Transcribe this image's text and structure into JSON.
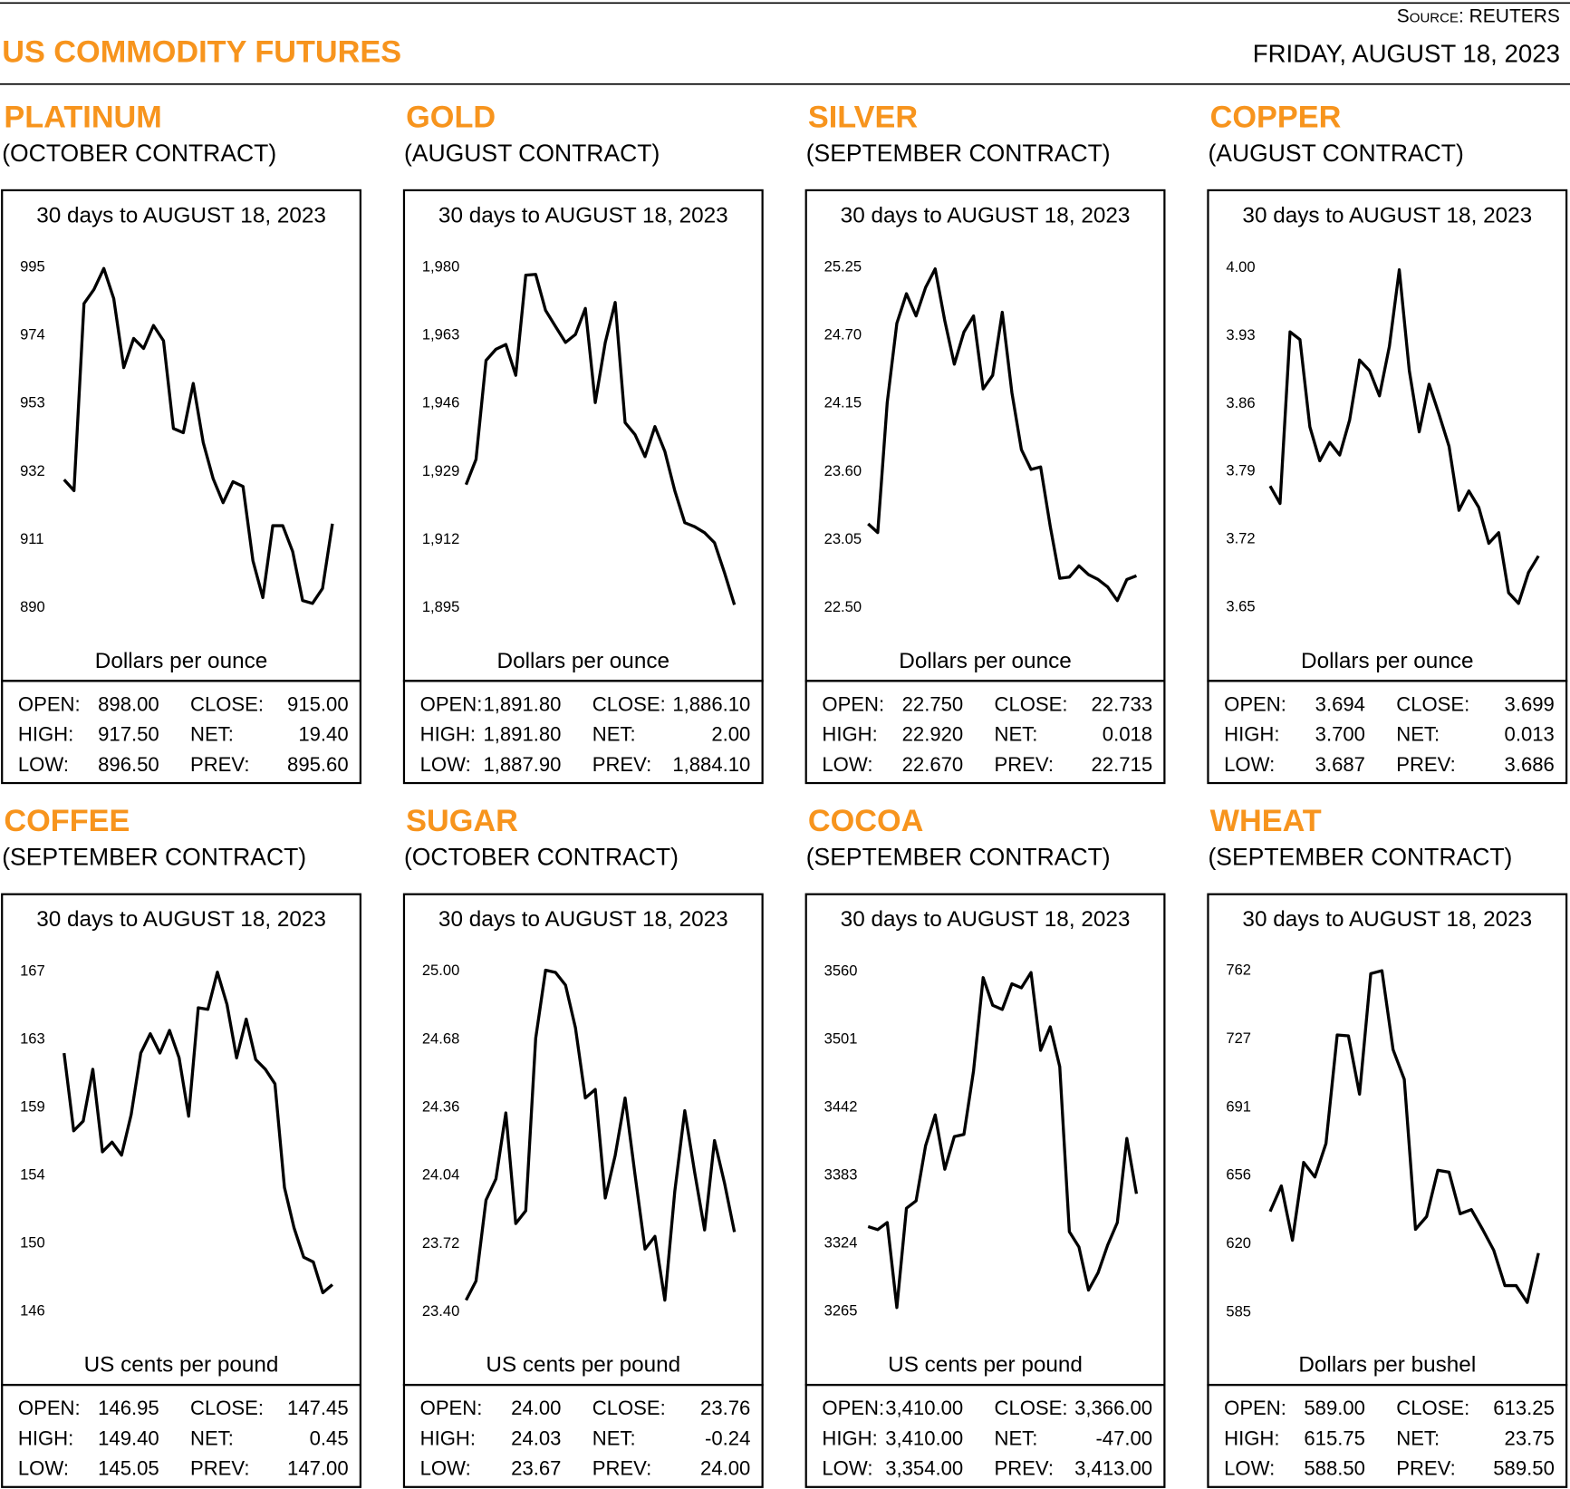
{
  "header": {
    "source": "Source: REUTERS",
    "title": "US COMMODITY FUTURES",
    "date": "FRIDAY, AUGUST 18, 2023"
  },
  "chart_data": [
    {
      "type": "line",
      "title": "PLATINUM",
      "subtitle": "(OCTOBER CONTRACT)",
      "caption": "30 days to AUGUST 18, 2023",
      "ylabel": "Dollars per ounce",
      "color": "#000000",
      "ylim": [
        885,
        1000
      ],
      "yticks": [
        995,
        974,
        953,
        932,
        911,
        890
      ],
      "values": [
        929.2,
        925.8,
        983.6,
        987.9,
        994.4,
        985.1,
        963.8,
        972.8,
        969.7,
        976.8,
        972.1,
        945,
        943.7,
        958.9,
        940.6,
        929.5,
        922.1,
        928.6,
        927.1,
        904.2,
        892.8,
        915,
        915,
        907,
        891.9,
        891,
        895.6,
        915.6
      ],
      "stats": [
        [
          "OPEN:",
          "898.00",
          "CLOSE:",
          "915.00"
        ],
        [
          "HIGH:",
          "917.50",
          "NET:",
          "19.40"
        ],
        [
          "LOW:",
          "896.50",
          "PREV:",
          "895.60"
        ]
      ]
    },
    {
      "type": "line",
      "title": "GOLD",
      "subtitle": "(AUGUST CONTRACT)",
      "caption": "30 days to AUGUST 18, 2023",
      "ylabel": "Dollars per ounce",
      "color": "#000000",
      "ylim": [
        1891,
        1984
      ],
      "yticks": [
        {
          "value": 1980,
          "label": "1,980"
        },
        {
          "value": 1963,
          "label": "1,963"
        },
        {
          "value": 1946,
          "label": "1,946"
        },
        {
          "value": 1929,
          "label": "1,929"
        },
        {
          "value": 1912,
          "label": "1,912"
        },
        {
          "value": 1895,
          "label": "1,895"
        }
      ],
      "values": [
        1925.5,
        1931.8,
        1956.5,
        1959.3,
        1960.5,
        1952.8,
        1977.8,
        1978,
        1969,
        1965,
        1961,
        1963,
        1969.5,
        1946,
        1961,
        1971,
        1941,
        1938,
        1932.5,
        1940,
        1933.8,
        1924,
        1916,
        1915,
        1913.5,
        1911,
        1903.5,
        1895.5
      ],
      "stats": [
        [
          "OPEN:",
          "1,891.80",
          "CLOSE:",
          "1,886.10"
        ],
        [
          "HIGH:",
          "1,891.80",
          "NET:",
          "2.00"
        ],
        [
          "LOW:",
          "1,887.90",
          "PREV:",
          "1,884.10"
        ]
      ]
    },
    {
      "type": "line",
      "title": "SILVER",
      "subtitle": "(SEPTEMBER CONTRACT)",
      "caption": "30 days to AUGUST 18, 2023",
      "ylabel": "Dollars per ounce",
      "color": "#000000",
      "ylim": [
        22.37,
        25.38
      ],
      "yticks": [
        25.25,
        {
          "value": 24.7,
          "label": "24.70"
        },
        24.15,
        {
          "value": 23.6,
          "label": "23.60"
        },
        23.05,
        {
          "value": 22.5,
          "label": "22.50"
        }
      ],
      "values": [
        23.17,
        23.1,
        24.15,
        24.79,
        25.03,
        24.85,
        25.08,
        25.23,
        24.81,
        24.46,
        24.72,
        24.85,
        24.26,
        24.37,
        24.88,
        24.23,
        23.77,
        23.61,
        23.63,
        23.15,
        22.73,
        22.74,
        22.83,
        22.76,
        22.72,
        22.66,
        22.55,
        22.72,
        22.75
      ],
      "stats": [
        [
          "OPEN:",
          "22.750",
          "CLOSE:",
          "22.733"
        ],
        [
          "HIGH:",
          "22.920",
          "NET:",
          "0.018"
        ],
        [
          "LOW:",
          "22.670",
          "PREV:",
          "22.715"
        ]
      ]
    },
    {
      "type": "line",
      "title": "COPPER",
      "subtitle": "(AUGUST CONTRACT)",
      "caption": "30 days to AUGUST 18, 2023",
      "ylabel": "Dollars per ounce",
      "color": "#000000",
      "ylim": [
        3.633,
        4.017
      ],
      "yticks": [
        {
          "value": 4,
          "label": "4.00"
        },
        3.93,
        3.86,
        3.79,
        3.72,
        3.65
      ],
      "values": [
        3.774,
        3.756,
        3.933,
        3.925,
        3.835,
        3.8,
        3.819,
        3.806,
        3.842,
        3.904,
        3.893,
        3.867,
        3.918,
        3.997,
        3.893,
        3.83,
        3.879,
        3.848,
        3.815,
        3.749,
        3.769,
        3.752,
        3.715,
        3.726,
        3.664,
        3.653,
        3.685,
        3.702
      ],
      "stats": [
        [
          "OPEN:",
          "3.694",
          "CLOSE:",
          "3.699"
        ],
        [
          "HIGH:",
          "3.700",
          "NET:",
          "0.013"
        ],
        [
          "LOW:",
          "3.687",
          "PREV:",
          "3.686"
        ]
      ]
    },
    {
      "type": "line",
      "title": "COFFEE",
      "subtitle": "(SEPTEMBER CONTRACT)",
      "caption": "30 days to AUGUST 18, 2023",
      "ylabel": "US cents per pound",
      "color": "#000000",
      "ylim": [
        145,
        168
      ],
      "yticks": [
        167,
        {
          "value": 162.8,
          "label": "163"
        },
        {
          "value": 158.6,
          "label": "159"
        },
        {
          "value": 154.4,
          "label": "154"
        },
        {
          "value": 150.2,
          "label": "150"
        },
        146
      ],
      "values": [
        161.9,
        157.1,
        157.7,
        160.9,
        155.8,
        156.4,
        155.6,
        158.1,
        161.9,
        163.1,
        161.9,
        163.3,
        161.6,
        158,
        164.7,
        164.6,
        166.9,
        164.9,
        161.6,
        164,
        161.5,
        160.9,
        160,
        153.6,
        151.1,
        149.3,
        149,
        147.1,
        147.6
      ],
      "stats": [
        [
          "OPEN:",
          "146.95",
          "CLOSE:",
          "147.45"
        ],
        [
          "HIGH:",
          "149.40",
          "NET:",
          "0.45"
        ],
        [
          "LOW:",
          "145.05",
          "PREV:",
          "147.00"
        ]
      ]
    },
    {
      "type": "line",
      "title": "SUGAR",
      "subtitle": "(OCTOBER CONTRACT)",
      "caption": "30 days to AUGUST 18, 2023",
      "ylabel": "US cents per pound",
      "color": "#000000",
      "ylim": [
        23.325,
        25.075
      ],
      "yticks": [
        {
          "value": 25,
          "label": "25.00"
        },
        24.68,
        24.36,
        24.04,
        23.72,
        {
          "value": 23.4,
          "label": "23.40"
        }
      ],
      "values": [
        23.45,
        23.54,
        23.92,
        24.02,
        24.33,
        23.81,
        23.87,
        24.68,
        25,
        24.99,
        24.93,
        24.73,
        24.4,
        24.44,
        23.93,
        24.13,
        24.4,
        24.04,
        23.69,
        23.75,
        23.45,
        23.96,
        24.34,
        24.05,
        23.78,
        24.2,
        24,
        23.77
      ],
      "stats": [
        [
          "OPEN:",
          "24.00",
          "CLOSE:",
          "23.76"
        ],
        [
          "HIGH:",
          "24.03",
          "NET:",
          "-0.24"
        ],
        [
          "LOW:",
          "23.67",
          "PREV:",
          "24.00"
        ]
      ]
    },
    {
      "type": "line",
      "title": "COCOA",
      "subtitle": "(SEPTEMBER CONTRACT)",
      "caption": "30 days to AUGUST 18, 2023",
      "ylabel": "US cents per pound",
      "color": "#000000",
      "ylim": [
        3251,
        3574
      ],
      "yticks": [
        3560,
        3501,
        3442,
        3383,
        3324,
        3265
      ],
      "values": [
        3337.9,
        3335.2,
        3341.4,
        3267.7,
        3353.8,
        3360.1,
        3408,
        3434.7,
        3387.6,
        3416,
        3417.8,
        3472.9,
        3553.8,
        3529.8,
        3526.2,
        3548.4,
        3544.9,
        3558.2,
        3490.7,
        3511.1,
        3476.5,
        3333.4,
        3320.1,
        3282.8,
        3297.9,
        3321.9,
        3341.4,
        3414.3,
        3366.3
      ],
      "stats": [
        [
          "OPEN:",
          "3,410.00",
          "CLOSE:",
          "3,366.00"
        ],
        [
          "HIGH:",
          "3,410.00",
          "NET:",
          "-47.00"
        ],
        [
          "LOW:",
          "3,354.00",
          "PREV:",
          "3,413.00"
        ]
      ]
    },
    {
      "type": "line",
      "title": "WHEAT",
      "subtitle": "(SEPTEMBER CONTRACT)",
      "caption": "30 days to AUGUST 18, 2023",
      "ylabel": "Dollars per bushel",
      "color": "#000000",
      "ylim": [
        577,
        770
      ],
      "yticks": [
        762,
        {
          "value": 726.6,
          "label": "727"
        },
        {
          "value": 691.2,
          "label": "691"
        },
        {
          "value": 655.8,
          "label": "656"
        },
        {
          "value": 620.4,
          "label": "620"
        },
        585
      ],
      "values": [
        636.7,
        650,
        621.8,
        662.2,
        654.6,
        672,
        728.2,
        727.7,
        697.5,
        760,
        761.5,
        720.6,
        705.2,
        627.5,
        634.1,
        658.1,
        657.1,
        635.6,
        637.7,
        627.5,
        616.7,
        598.3,
        598.3,
        589.6,
        615.2
      ],
      "stats": [
        [
          "OPEN:",
          "589.00",
          "CLOSE:",
          "613.25"
        ],
        [
          "HIGH:",
          "615.75",
          "NET:",
          "23.75"
        ],
        [
          "LOW:",
          "588.50",
          "PREV:",
          "589.50"
        ]
      ]
    }
  ]
}
